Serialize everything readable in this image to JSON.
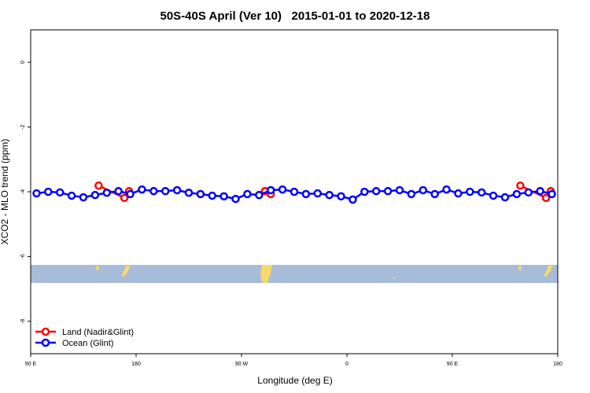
{
  "chart_data": {
    "type": "line",
    "title": "50S-40S April (Ver 10)   2015-01-01 to 2020-12-18",
    "xlabel": "Longitude (deg E)",
    "ylabel": "XCO2 - MLO trend (ppm)",
    "xlim": [
      90,
      540
    ],
    "ylim": [
      -9,
      1
    ],
    "xticks": [
      {
        "value": 90,
        "label": "90 E"
      },
      180,
      {
        "value": 270,
        "label": "90 W"
      },
      {
        "value": 360,
        "label": "0"
      },
      {
        "value": 450,
        "label": "90 E"
      },
      {
        "value": 540,
        "label": "180"
      }
    ],
    "yticks": [
      0,
      -2,
      -4,
      -6,
      -8
    ],
    "legend": "bottom-left",
    "series": [
      {
        "name": "Land (Nadir&Glint)",
        "color": "#ff0000",
        "x": [
          148,
          170,
          174,
          290,
          295,
          508,
          530,
          534
        ],
        "values": [
          -3.81,
          -4.19,
          -3.98,
          -3.98,
          -4.07,
          -3.81,
          -4.19,
          -3.98
        ]
      },
      {
        "name": "Ocean (Glint)",
        "color": "#0000ff",
        "x": [
          95,
          105,
          115,
          125,
          135,
          145,
          155,
          165,
          175,
          185,
          195,
          205,
          215,
          225,
          235,
          245,
          255,
          265,
          275,
          285,
          295,
          305,
          315,
          325,
          335,
          345,
          355,
          365,
          375,
          385,
          395,
          405,
          415,
          425,
          435,
          445,
          455,
          465,
          475,
          485,
          495,
          505,
          515,
          525,
          535
        ],
        "values": [
          -4.05,
          -4.0,
          -4.02,
          -4.12,
          -4.17,
          -4.1,
          -4.03,
          -3.98,
          -4.07,
          -3.93,
          -3.98,
          -3.98,
          -3.95,
          -4.03,
          -4.07,
          -4.12,
          -4.14,
          -4.22,
          -4.07,
          -4.1,
          -3.95,
          -3.93,
          -4.0,
          -4.07,
          -4.05,
          -4.1,
          -4.14,
          -4.24,
          -4.0,
          -3.98,
          -3.98,
          -3.95,
          -4.07,
          -3.95,
          -4.07,
          -3.93,
          -4.05,
          -4.0,
          -4.02,
          -4.12,
          -4.17,
          -4.07,
          -4.02,
          -3.98,
          -4.07
        ]
      }
    ]
  }
}
